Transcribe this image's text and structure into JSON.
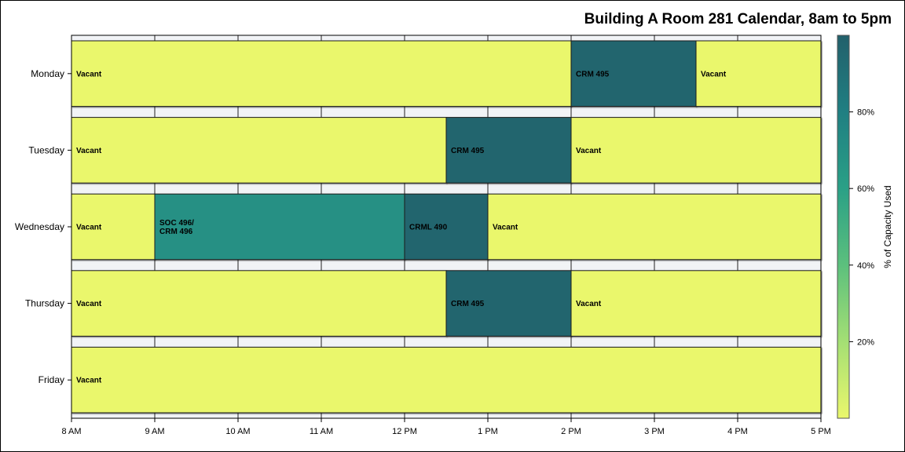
{
  "chart_data": {
    "type": "gantt",
    "title": "Building A Room 281 Calendar, 8am to 5pm",
    "x_range": [
      8,
      17
    ],
    "x_ticks": [
      {
        "value": 8,
        "label": "8 AM"
      },
      {
        "value": 9,
        "label": "9 AM"
      },
      {
        "value": 10,
        "label": "10 AM"
      },
      {
        "value": 11,
        "label": "11 AM"
      },
      {
        "value": 12,
        "label": "12 PM"
      },
      {
        "value": 13,
        "label": "1 PM"
      },
      {
        "value": 14,
        "label": "2 PM"
      },
      {
        "value": 15,
        "label": "3 PM"
      },
      {
        "value": 16,
        "label": "4 PM"
      },
      {
        "value": 17,
        "label": "5 PM"
      }
    ],
    "days": [
      "Monday",
      "Tuesday",
      "Wednesday",
      "Thursday",
      "Friday"
    ],
    "bookings": [
      {
        "day": "Monday",
        "start": 8,
        "end": 14,
        "label": [
          "Vacant"
        ],
        "capacity": 0
      },
      {
        "day": "Monday",
        "start": 14,
        "end": 15.5,
        "label": [
          "CRM 495"
        ],
        "capacity": 97
      },
      {
        "day": "Monday",
        "start": 15.5,
        "end": 17,
        "label": [
          "Vacant"
        ],
        "capacity": 0
      },
      {
        "day": "Tuesday",
        "start": 8,
        "end": 12.5,
        "label": [
          "Vacant"
        ],
        "capacity": 0
      },
      {
        "day": "Tuesday",
        "start": 12.5,
        "end": 14,
        "label": [
          "CRM 495"
        ],
        "capacity": 97
      },
      {
        "day": "Tuesday",
        "start": 14,
        "end": 17,
        "label": [
          "Vacant"
        ],
        "capacity": 0
      },
      {
        "day": "Wednesday",
        "start": 8,
        "end": 9,
        "label": [
          "Vacant"
        ],
        "capacity": 0
      },
      {
        "day": "Wednesday",
        "start": 9,
        "end": 12,
        "label": [
          "SOC 496/",
          "CRM 496"
        ],
        "capacity": 70
      },
      {
        "day": "Wednesday",
        "start": 12,
        "end": 13,
        "label": [
          "CRML 490"
        ],
        "capacity": 97
      },
      {
        "day": "Wednesday",
        "start": 13,
        "end": 17,
        "label": [
          "Vacant"
        ],
        "capacity": 0
      },
      {
        "day": "Thursday",
        "start": 8,
        "end": 12.5,
        "label": [
          "Vacant"
        ],
        "capacity": 0
      },
      {
        "day": "Thursday",
        "start": 12.5,
        "end": 14,
        "label": [
          "CRM 495"
        ],
        "capacity": 97
      },
      {
        "day": "Thursday",
        "start": 14,
        "end": 17,
        "label": [
          "Vacant"
        ],
        "capacity": 0
      },
      {
        "day": "Friday",
        "start": 8,
        "end": 17,
        "label": [
          "Vacant"
        ],
        "capacity": 0
      }
    ],
    "colorbar": {
      "label": "% of Capacity Used",
      "range": [
        0,
        100
      ],
      "ticks": [
        {
          "value": 20,
          "label": "20%"
        },
        {
          "value": 40,
          "label": "40%"
        },
        {
          "value": 60,
          "label": "60%"
        },
        {
          "value": 80,
          "label": "80%"
        }
      ],
      "colors": [
        "#eaf76c",
        "#a4df74",
        "#5cc07d",
        "#2aa086",
        "#207f82",
        "#22606b"
      ]
    }
  }
}
